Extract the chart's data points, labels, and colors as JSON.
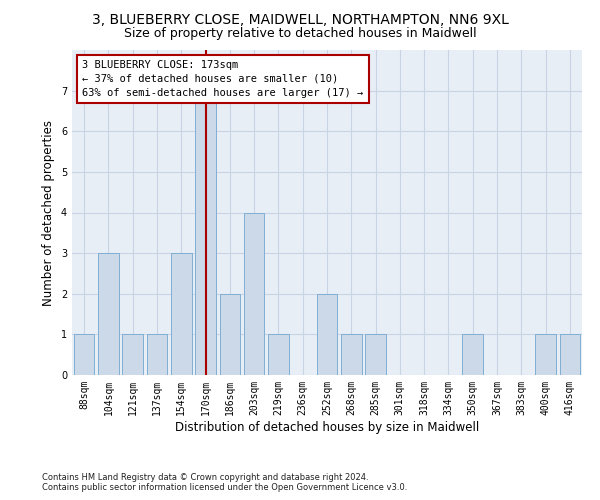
{
  "title_line1": "3, BLUEBERRY CLOSE, MAIDWELL, NORTHAMPTON, NN6 9XL",
  "title_line2": "Size of property relative to detached houses in Maidwell",
  "xlabel": "Distribution of detached houses by size in Maidwell",
  "ylabel": "Number of detached properties",
  "footnote": "Contains HM Land Registry data © Crown copyright and database right 2024.\nContains public sector information licensed under the Open Government Licence v3.0.",
  "bar_color": "#ccd9e8",
  "bar_edge_color": "#7fafd4",
  "annotation_line1": "3 BLUEBERRY CLOSE: 173sqm",
  "annotation_line2": "← 37% of detached houses are smaller (10)",
  "annotation_line3": "63% of semi-detached houses are larger (17) →",
  "annotation_box_color": "#ffffff",
  "annotation_box_edge_color": "#aa0000",
  "vline_color": "#aa0000",
  "vline_x_index": 5,
  "categories": [
    "88sqm",
    "104sqm",
    "121sqm",
    "137sqm",
    "154sqm",
    "170sqm",
    "186sqm",
    "203sqm",
    "219sqm",
    "236sqm",
    "252sqm",
    "268sqm",
    "285sqm",
    "301sqm",
    "318sqm",
    "334sqm",
    "350sqm",
    "367sqm",
    "383sqm",
    "400sqm",
    "416sqm"
  ],
  "values": [
    1,
    3,
    1,
    1,
    3,
    7,
    2,
    4,
    1,
    0,
    2,
    1,
    1,
    0,
    0,
    0,
    1,
    0,
    0,
    1,
    1
  ],
  "ylim": [
    0,
    8
  ],
  "yticks": [
    0,
    1,
    2,
    3,
    4,
    5,
    6,
    7,
    8
  ],
  "grid_color": "#c8d4e4",
  "bg_color": "#e8eef6",
  "title1_fontsize": 10,
  "title2_fontsize": 9,
  "ylabel_fontsize": 8.5,
  "xlabel_fontsize": 8.5,
  "tick_fontsize": 7,
  "annotation_fontsize": 7.5,
  "footnote_fontsize": 6
}
